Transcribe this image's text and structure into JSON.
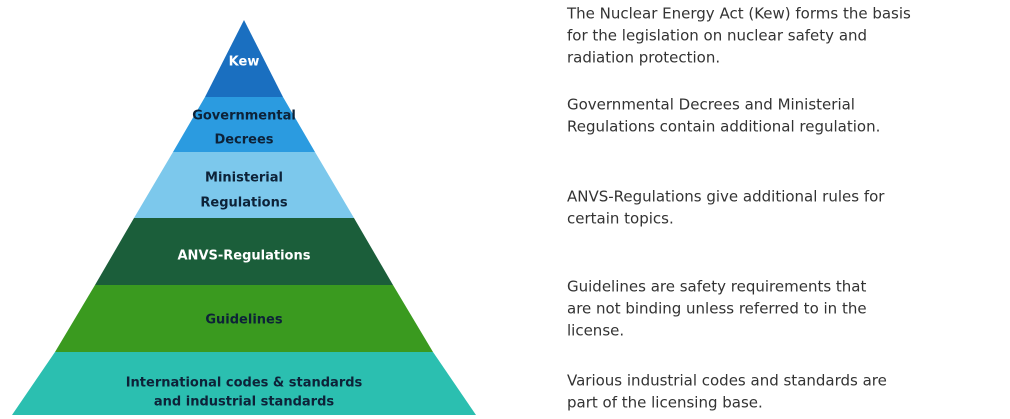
{
  "layers": [
    {
      "label": [
        "Kew"
      ],
      "description": [
        "The Nuclear Energy Act (Kew) forms the basis",
        "for the legislation on nuclear safety and",
        "radiation protection."
      ]
    },
    {
      "label": [
        "Governmental",
        "Decrees"
      ],
      "description": [
        "Governmental Decrees and Ministerial",
        "Regulations contain additional regulation."
      ]
    },
    {
      "label": [
        "Ministerial",
        "Regulations"
      ],
      "description": [
        "ANVS-Regulations give additional rules for",
        "certain topics."
      ]
    },
    {
      "label": [
        "ANVS-Regulations"
      ],
      "description": [
        "Guidelines are safety requirements that",
        "are not binding unless referred to in the",
        "license."
      ]
    },
    {
      "label": [
        "Guidelines"
      ],
      "description": [
        "Various industrial codes and standards are",
        "part of the licensing base."
      ]
    },
    {
      "label": [
        "International codes & standards",
        "and industrial standards"
      ]
    }
  ]
}
